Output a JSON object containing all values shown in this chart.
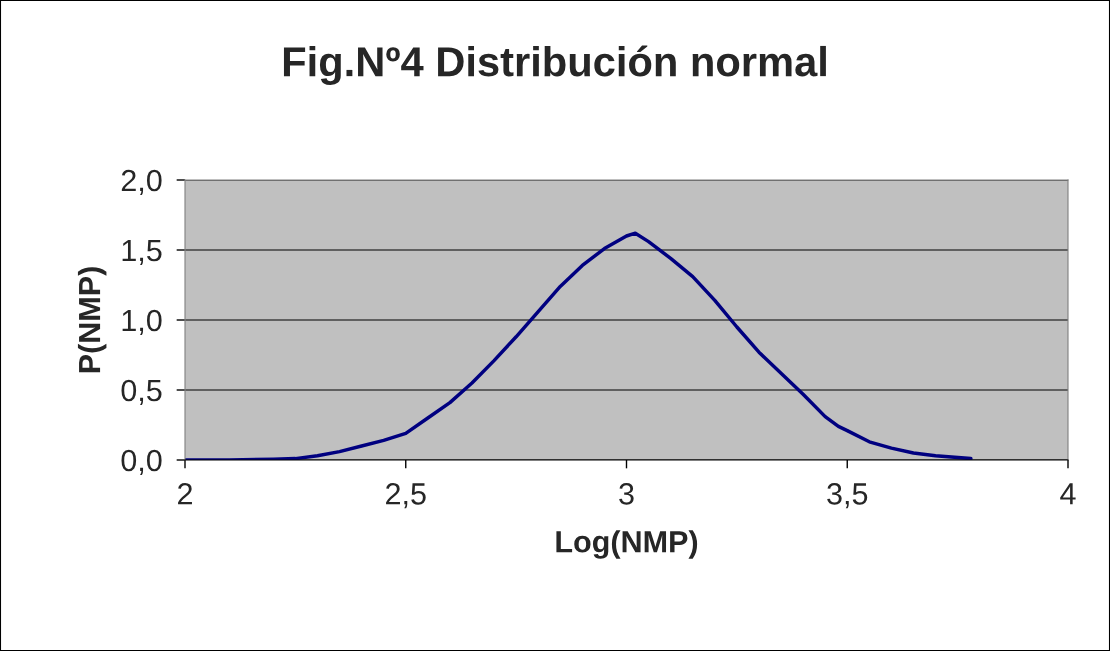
{
  "chart_data": {
    "type": "line",
    "title": "Fig.Nº4 Distribución normal",
    "xlabel": "Log(NMP)",
    "ylabel": "P(NMP)",
    "series": [
      {
        "color": "#000080",
        "x": [
          2.0,
          2.1,
          2.2,
          2.25,
          2.3,
          2.35,
          2.4,
          2.45,
          2.5,
          2.55,
          2.6,
          2.65,
          2.7,
          2.75,
          2.8,
          2.85,
          2.9,
          2.95,
          3.0,
          3.02,
          3.05,
          3.1,
          3.15,
          3.2,
          3.25,
          3.3,
          3.35,
          3.4,
          3.45,
          3.48,
          3.5,
          3.55,
          3.6,
          3.65,
          3.7,
          3.78
        ],
        "values": [
          0.0,
          0.0,
          0.005,
          0.01,
          0.03,
          0.06,
          0.1,
          0.14,
          0.19,
          0.3,
          0.41,
          0.55,
          0.71,
          0.88,
          1.06,
          1.24,
          1.39,
          1.51,
          1.6,
          1.62,
          1.56,
          1.44,
          1.31,
          1.14,
          0.95,
          0.77,
          0.62,
          0.47,
          0.31,
          0.24,
          0.21,
          0.13,
          0.085,
          0.05,
          0.03,
          0.01
        ]
      }
    ],
    "xlim": [
      2,
      4
    ],
    "xticks": [
      2,
      {
        "value": 2.5,
        "label": "2,5"
      },
      3,
      {
        "value": 3.5,
        "label": "3,5"
      },
      4
    ],
    "ylim": [
      0,
      2
    ],
    "yticks": [
      {
        "value": 0,
        "label": "0,0"
      },
      {
        "value": 0.5,
        "label": "0,5"
      },
      {
        "value": 1.0,
        "label": "1,0"
      },
      {
        "value": 1.5,
        "label": "1,5"
      },
      {
        "value": 2.0,
        "label": "2,0"
      }
    ],
    "grid": "y",
    "marker": "none",
    "line_style": "solid",
    "legend": false
  }
}
